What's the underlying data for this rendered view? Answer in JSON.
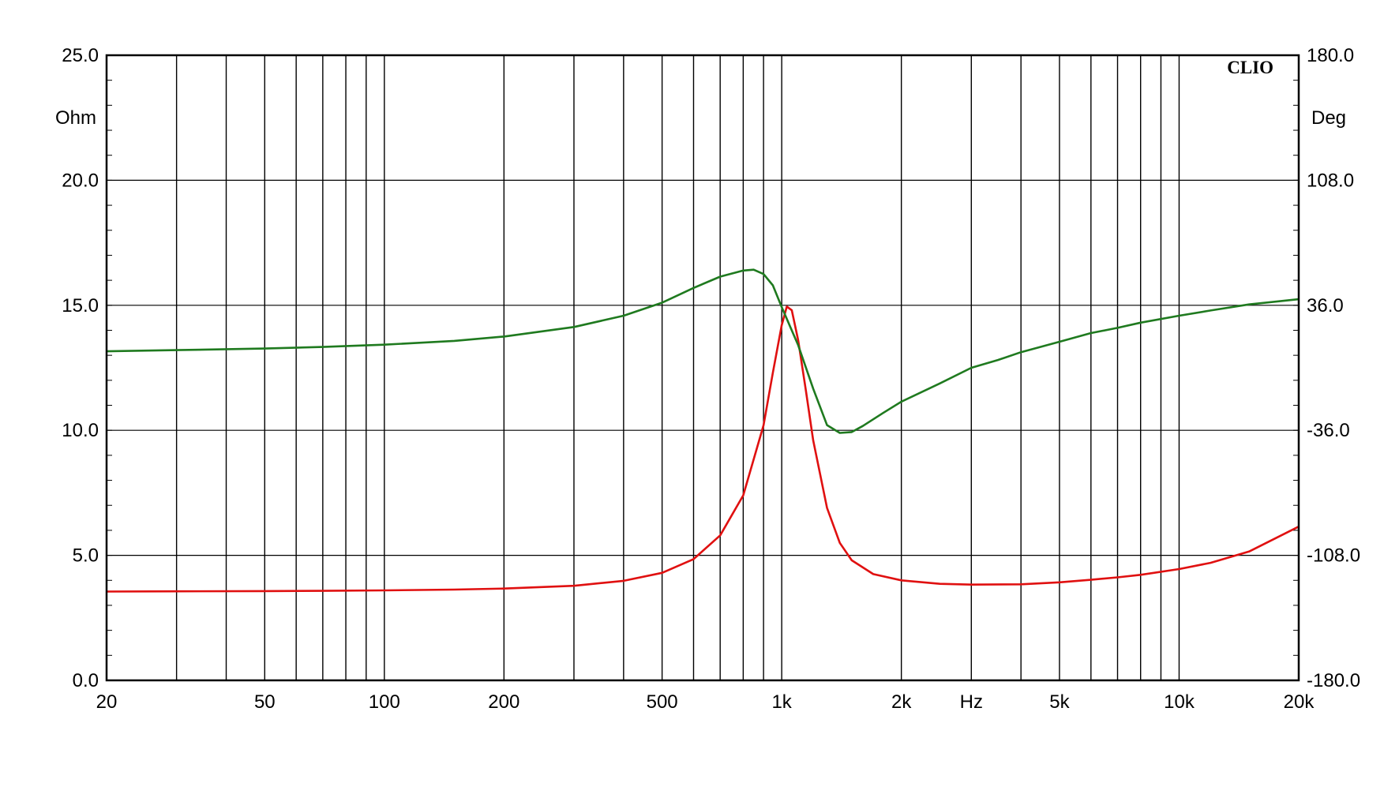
{
  "chart_data": {
    "type": "line",
    "brand": "CLIO",
    "x_scale": "log",
    "xlim": [
      20,
      20000
    ],
    "x_tick_labels": [
      {
        "value": 20,
        "label": "20"
      },
      {
        "value": 50,
        "label": "50"
      },
      {
        "value": 100,
        "label": "100"
      },
      {
        "value": 200,
        "label": "200"
      },
      {
        "value": 500,
        "label": "500"
      },
      {
        "value": 1000,
        "label": "1k"
      },
      {
        "value": 2000,
        "label": "2k"
      },
      {
        "value": 5000,
        "label": "5k"
      },
      {
        "value": 10000,
        "label": "10k"
      },
      {
        "value": 20000,
        "label": "20k"
      }
    ],
    "x_grid_values": [
      20,
      30,
      40,
      50,
      60,
      70,
      80,
      90,
      100,
      200,
      300,
      400,
      500,
      600,
      700,
      800,
      900,
      1000,
      2000,
      3000,
      4000,
      5000,
      6000,
      7000,
      8000,
      9000,
      10000,
      20000
    ],
    "xlabel": "Hz",
    "xlabel_at": 3000,
    "y_left": {
      "unit": "Ohm",
      "lim": [
        0,
        25
      ],
      "ticks": [
        {
          "value": 25,
          "label": "25.0"
        },
        {
          "value": 20,
          "label": "20.0"
        },
        {
          "value": 15,
          "label": "15.0"
        },
        {
          "value": 10,
          "label": "10.0"
        },
        {
          "value": 5,
          "label": "5.0"
        },
        {
          "value": 0,
          "label": "0.0"
        }
      ]
    },
    "y_right": {
      "unit": "Deg",
      "lim": [
        -180,
        180
      ],
      "ticks": [
        {
          "value": 180,
          "label": "180.0"
        },
        {
          "value": 108,
          "label": "108.0"
        },
        {
          "value": 36,
          "label": "36.0"
        },
        {
          "value": -36,
          "label": "-36.0"
        },
        {
          "value": -108,
          "label": "-108.0"
        },
        {
          "value": -180,
          "label": "-180.0"
        }
      ]
    },
    "grid": true,
    "series": [
      {
        "axis": "left",
        "color": "#e01010",
        "points": [
          [
            20,
            3.55
          ],
          [
            30,
            3.56
          ],
          [
            50,
            3.57
          ],
          [
            70,
            3.58
          ],
          [
            100,
            3.6
          ],
          [
            150,
            3.63
          ],
          [
            200,
            3.67
          ],
          [
            300,
            3.78
          ],
          [
            400,
            3.98
          ],
          [
            500,
            4.3
          ],
          [
            600,
            4.85
          ],
          [
            700,
            5.8
          ],
          [
            800,
            7.4
          ],
          [
            900,
            10.2
          ],
          [
            950,
            12.3
          ],
          [
            1000,
            14.2
          ],
          [
            1030,
            14.95
          ],
          [
            1060,
            14.8
          ],
          [
            1100,
            13.6
          ],
          [
            1150,
            11.6
          ],
          [
            1200,
            9.6
          ],
          [
            1300,
            6.9
          ],
          [
            1400,
            5.5
          ],
          [
            1500,
            4.8
          ],
          [
            1700,
            4.25
          ],
          [
            2000,
            4.0
          ],
          [
            2500,
            3.86
          ],
          [
            3000,
            3.83
          ],
          [
            4000,
            3.84
          ],
          [
            5000,
            3.92
          ],
          [
            6000,
            4.02
          ],
          [
            7000,
            4.12
          ],
          [
            8000,
            4.22
          ],
          [
            10000,
            4.45
          ],
          [
            12000,
            4.7
          ],
          [
            15000,
            5.15
          ],
          [
            20000,
            6.15
          ]
        ]
      },
      {
        "axis": "right",
        "color": "#1f7a1f",
        "points": [
          [
            20,
            9.5
          ],
          [
            30,
            10.2
          ],
          [
            50,
            11.1
          ],
          [
            70,
            12.0
          ],
          [
            100,
            13.3
          ],
          [
            150,
            15.5
          ],
          [
            200,
            18.0
          ],
          [
            300,
            23.5
          ],
          [
            400,
            30.0
          ],
          [
            500,
            37.5
          ],
          [
            600,
            46.0
          ],
          [
            700,
            52.5
          ],
          [
            800,
            56.0
          ],
          [
            850,
            56.5
          ],
          [
            900,
            54.0
          ],
          [
            950,
            47.5
          ],
          [
            1000,
            35.0
          ],
          [
            1100,
            13.0
          ],
          [
            1200,
            -12.0
          ],
          [
            1300,
            -33.0
          ],
          [
            1400,
            -37.5
          ],
          [
            1500,
            -37.0
          ],
          [
            1600,
            -33.5
          ],
          [
            1800,
            -26.0
          ],
          [
            2000,
            -19.5
          ],
          [
            2500,
            -9.0
          ],
          [
            3000,
            0.0
          ],
          [
            3500,
            4.5
          ],
          [
            4000,
            9.0
          ],
          [
            5000,
            15.0
          ],
          [
            6000,
            20.0
          ],
          [
            7000,
            23.0
          ],
          [
            8000,
            26.0
          ],
          [
            10000,
            30.0
          ],
          [
            12000,
            33.0
          ],
          [
            15000,
            36.5
          ],
          [
            20000,
            39.5
          ]
        ]
      }
    ]
  }
}
